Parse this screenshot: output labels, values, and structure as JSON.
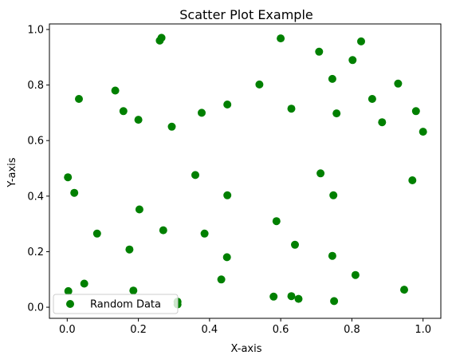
{
  "chart_data": {
    "type": "scatter",
    "title": "Scatter Plot Example",
    "xlabel": "X-axis",
    "ylabel": "Y-axis",
    "xlim": [
      -0.05,
      1.05
    ],
    "ylim": [
      -0.04,
      1.02
    ],
    "xticks": [
      0.0,
      0.2,
      0.4,
      0.6,
      0.8,
      1.0
    ],
    "xtick_labels": [
      "0.0",
      "0.2",
      "0.4",
      "0.6",
      "0.8",
      "1.0"
    ],
    "yticks": [
      0.0,
      0.2,
      0.4,
      0.6,
      0.8,
      1.0
    ],
    "ytick_labels": [
      "0.0",
      "0.2",
      "0.4",
      "0.6",
      "0.8",
      "1.0"
    ],
    "grid": false,
    "legend_position": "lower-left",
    "series": [
      {
        "name": "Random Data",
        "color": "#008000",
        "marker": "circle",
        "x": [
          0.26,
          0.265,
          0.6,
          0.826,
          0.708,
          0.802,
          0.745,
          0.93,
          0.54,
          0.135,
          0.033,
          0.857,
          0.45,
          0.63,
          0.158,
          0.98,
          0.378,
          0.757,
          0.2,
          0.885,
          0.294,
          1.0,
          0.002,
          0.712,
          0.36,
          0.97,
          0.02,
          0.748,
          0.45,
          0.203,
          0.588,
          0.27,
          0.084,
          0.386,
          0.64,
          0.175,
          0.745,
          0.449,
          0.81,
          0.433,
          0.048,
          0.003,
          0.186,
          0.947,
          0.58,
          0.63,
          0.65,
          0.31,
          0.31,
          0.75
        ],
        "y": [
          0.96,
          0.97,
          0.968,
          0.957,
          0.92,
          0.89,
          0.822,
          0.805,
          0.802,
          0.78,
          0.75,
          0.75,
          0.73,
          0.715,
          0.706,
          0.706,
          0.7,
          0.698,
          0.675,
          0.666,
          0.65,
          0.632,
          0.468,
          0.482,
          0.476,
          0.457,
          0.412,
          0.403,
          0.403,
          0.352,
          0.31,
          0.277,
          0.265,
          0.265,
          0.225,
          0.208,
          0.185,
          0.18,
          0.116,
          0.1,
          0.085,
          0.058,
          0.06,
          0.063,
          0.038,
          0.04,
          0.03,
          0.02,
          0.01,
          0.022
        ]
      }
    ]
  }
}
